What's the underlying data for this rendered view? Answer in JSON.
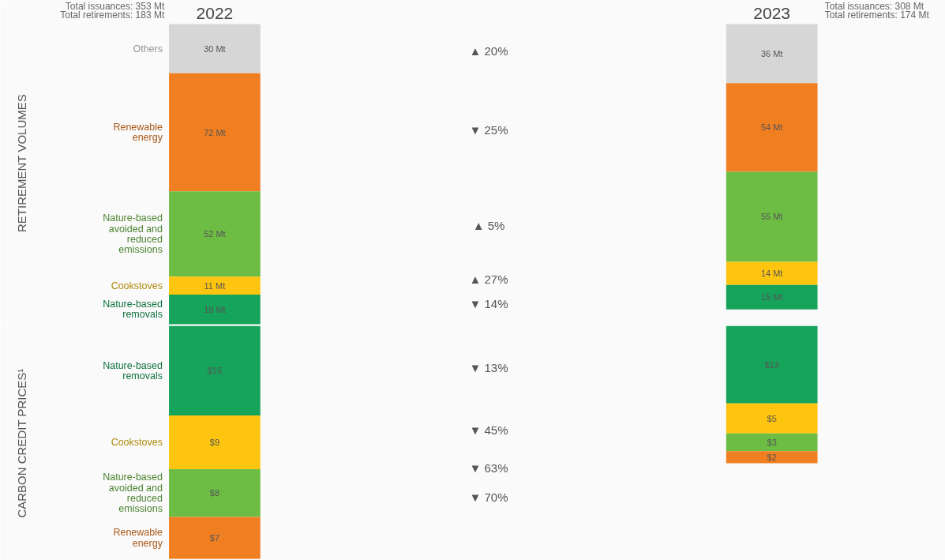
{
  "chart_data": [
    {
      "type": "other",
      "ylabel": "RETIREMENT VOLUMES",
      "categories": [
        "Others",
        "Renewable energy",
        "Nature-based avoided and reduced emissions",
        "Cookstoves",
        "Nature-based removals"
      ],
      "series": [
        {
          "name": "2022",
          "colors": [
            "#d6d6d6",
            "#f07f22",
            "#6dbd45",
            "#fdc50f",
            "#16a35a"
          ],
          "values": [
            30,
            72,
            52,
            11,
            18
          ],
          "value_labels": [
            "30 Mt",
            "72 Mt",
            "52 Mt",
            "11 Mt",
            "18 Mt"
          ]
        },
        {
          "name": "2023",
          "colors": [
            "#d6d6d6",
            "#f07f22",
            "#6dbd45",
            "#fdc50f",
            "#16a35a"
          ],
          "values": [
            36,
            54,
            55,
            14,
            15
          ],
          "value_labels": [
            "36 Mt",
            "54 Mt",
            "55 Mt",
            "14 Mt",
            "15 Mt"
          ]
        }
      ],
      "annotations": [
        "▲ 20%",
        "▼ 25%",
        "▲ 5%",
        "▲ 27%",
        "▼ 14%",
        "Total issuances: 353 Mt",
        "Total retirements: 183 Mt",
        "Total issuances: 308 Mt",
        "Total retirements: 174 Mt"
      ]
    },
    {
      "type": "other",
      "ylabel": "CARBON CREDIT PRICES¹",
      "categories": [
        "Nature-based removals",
        "Cookstoves",
        "Nature-based avoided and reduced emissions",
        "Renewable energy"
      ],
      "series": [
        {
          "colors": [
            "#16a35a",
            "#fdc50f",
            "#6dbd45",
            "#f07f22"
          ],
          "values": [
            15,
            9,
            8,
            7
          ],
          "value_labels": [
            "$15",
            "$9",
            "$8",
            "$7"
          ]
        },
        {
          "colors": [
            "#16a35a",
            "#fdc50f",
            "#6dbd45",
            "#f07f22"
          ],
          "values": [
            13,
            5,
            3,
            2
          ],
          "value_labels": [
            "$13",
            "$5",
            "$3",
            "$2"
          ]
        }
      ],
      "annotations": [
        "▼ 13%",
        "▼ 45%",
        "▼ 63%",
        "▼ 70%"
      ]
    }
  ]
}
